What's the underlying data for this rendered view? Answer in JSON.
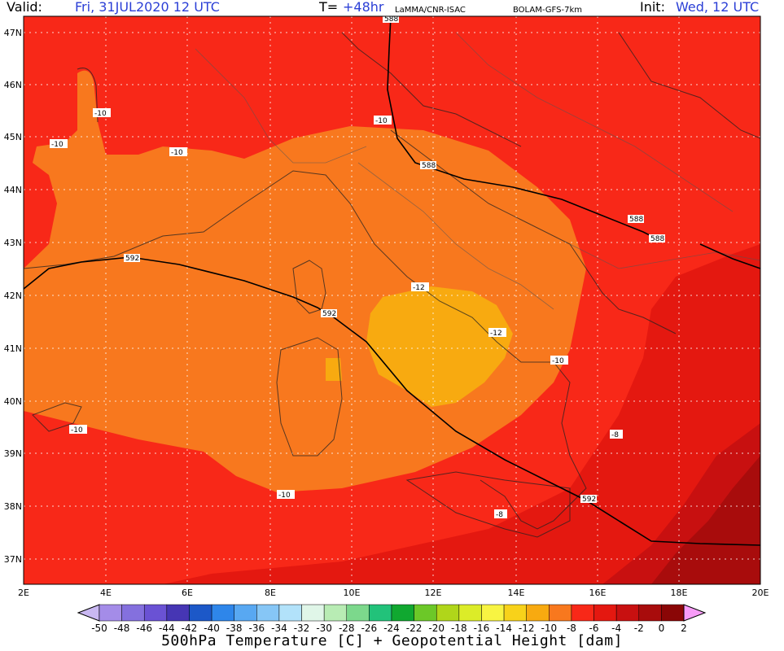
{
  "header": {
    "valid_label": "Valid:",
    "valid_value": "Fri, 31JUL2020  12 UTC",
    "lead_label": "T=",
    "lead_value": "+48hr",
    "source": "LaMMA/CNR-ISAC",
    "model": "BOLAM-GFS-7km",
    "init_label": "Init:",
    "init_value": "Wed, 12 UTC"
  },
  "axes": {
    "lon_ticks": [
      "2E",
      "4E",
      "6E",
      "8E",
      "10E",
      "12E",
      "14E",
      "16E",
      "18E",
      "20E"
    ],
    "lat_ticks": [
      "47N",
      "46N",
      "45N",
      "44N",
      "43N",
      "42N",
      "41N",
      "40N",
      "39N",
      "38N",
      "37N"
    ]
  },
  "contour_labels": {
    "geopotential": [
      "588",
      "588",
      "588",
      "588",
      "592",
      "592",
      "592"
    ],
    "temperature": [
      "-10",
      "-10",
      "-10",
      "-10",
      "-10",
      "-12",
      "-12",
      "-10",
      "-8",
      "-10",
      "-8"
    ]
  },
  "colorbar": {
    "ticks": [
      "-50",
      "-48",
      "-46",
      "-44",
      "-42",
      "-40",
      "-38",
      "-36",
      "-34",
      "-32",
      "-30",
      "-28",
      "-26",
      "-24",
      "-22",
      "-20",
      "-18",
      "-16",
      "-14",
      "-12",
      "-10",
      "-8",
      "-6",
      "-4",
      "-2",
      "0",
      "2"
    ],
    "colors": [
      "#c9b8f2",
      "#a48ce8",
      "#8470de",
      "#6a52d4",
      "#4636b4",
      "#1c58c8",
      "#2e86ea",
      "#58a8f2",
      "#86c6f6",
      "#b2e2fa",
      "#e0f6e8",
      "#b8ecb4",
      "#7cd88c",
      "#22c27a",
      "#10a830",
      "#6cc828",
      "#b0d61a",
      "#dcec28",
      "#f8f442",
      "#f8d21a",
      "#f8aa10",
      "#f8781e",
      "#f82818",
      "#e41810",
      "#c81010",
      "#a80c0c",
      "#8a0606",
      "#9c149c",
      "#cc1ccc",
      "#f03ef0",
      "#f89cf8"
    ]
  },
  "title": "500hPa Temperature [C] + Geopotential Height [dam]"
}
